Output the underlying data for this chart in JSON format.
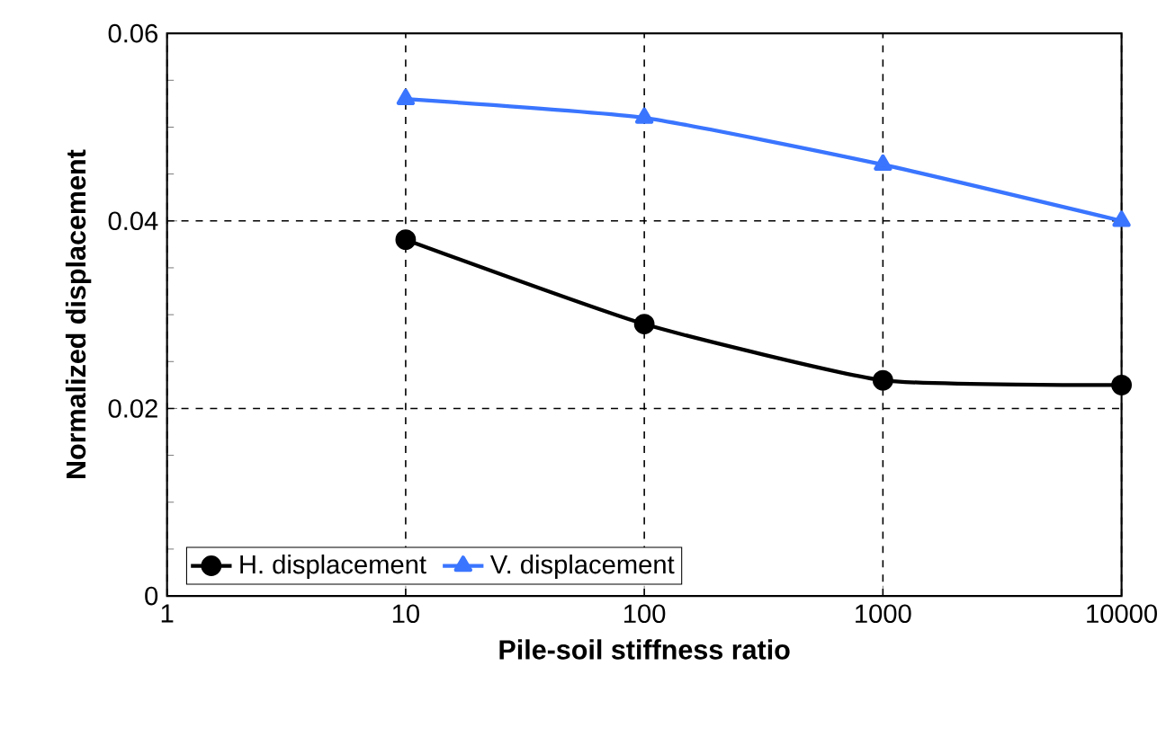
{
  "chart_data": {
    "type": "line",
    "xlabel": "Pile-soil stiffness ratio",
    "ylabel": "Normalized displacement",
    "log": "x",
    "xlim": [
      1,
      10000
    ],
    "xticks": [
      1,
      10,
      100,
      1000,
      10000
    ],
    "ylim": [
      0,
      0.06
    ],
    "yticks": [
      0,
      0.02,
      0.04,
      0.06
    ],
    "grid": true,
    "legend": "bottom left",
    "line_style": "solid",
    "x": [
      10,
      100,
      1000,
      10000
    ],
    "series": [
      {
        "name": "H. displacement",
        "color": "#000000",
        "marker": "circle",
        "values": [
          0.038,
          0.029,
          0.023,
          0.0225
        ]
      },
      {
        "name": "V. displacement",
        "color": "#3a75ff",
        "marker": "triangle",
        "values": [
          0.053,
          0.051,
          0.046,
          0.04
        ]
      }
    ]
  }
}
